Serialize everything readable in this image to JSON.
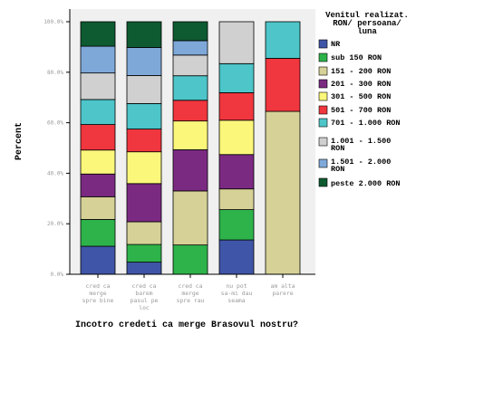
{
  "chart_data": {
    "type": "bar",
    "stacked": true,
    "categories": [
      [
        "cred ca",
        "merge",
        "spre bine"
      ],
      [
        "cred ca",
        "barem",
        "pasul pe",
        "loc"
      ],
      [
        "cred ca",
        "merge",
        "spre rau"
      ],
      [
        "nu pot",
        "sa-mi dau",
        "seama"
      ],
      [
        "am alta",
        "parere"
      ]
    ],
    "xlabel": "Incotro credeti ca merge Brasovul nostru?",
    "ylabel": "Percent",
    "ylim": [
      0,
      100
    ],
    "yticks": [
      "0.0%",
      "20.0%",
      "40.0%",
      "60.0%",
      "80.0%",
      "100.0%"
    ],
    "legend": {
      "title": [
        "Venitul realizat.",
        "RON/ persoana/",
        "luna"
      ],
      "position": "right"
    },
    "series": [
      {
        "name": [
          "NR"
        ],
        "color": "#3f55a7",
        "values": [
          11.1,
          4.8,
          0,
          13.6,
          0
        ]
      },
      {
        "name": [
          "sub 150 RON"
        ],
        "color": "#2db34a",
        "values": [
          10.6,
          7.0,
          11.6,
          12.0,
          0
        ]
      },
      {
        "name": [
          "151 - 200 RON"
        ],
        "color": "#d6d196",
        "values": [
          9.0,
          9.0,
          21.4,
          8.2,
          64.5
        ]
      },
      {
        "name": [
          "201 - 300 RON"
        ],
        "color": "#7b2a82",
        "values": [
          9.0,
          15.1,
          16.3,
          13.6,
          0
        ]
      },
      {
        "name": [
          "301 - 500 RON"
        ],
        "color": "#fbf77b",
        "values": [
          9.5,
          12.6,
          11.4,
          13.6,
          0
        ]
      },
      {
        "name": [
          "501 - 700 RON"
        ],
        "color": "#f0363e",
        "values": [
          10.1,
          9.0,
          8.2,
          10.9,
          21.0
        ]
      },
      {
        "name": [
          "701 - 1.000 RON"
        ],
        "color": "#4dc5c9",
        "values": [
          9.9,
          10.1,
          9.7,
          11.5,
          14.5
        ]
      },
      {
        "name": [
          "1.001 - 1.500",
          "RON"
        ],
        "color": "#d0d0d0",
        "values": [
          10.5,
          11.1,
          8.2,
          16.6,
          0
        ]
      },
      {
        "name": [
          "1.501 - 2.000",
          "RON"
        ],
        "color": "#7ea8d8",
        "values": [
          10.6,
          11.1,
          5.7,
          0,
          0
        ]
      },
      {
        "name": [
          "peste 2.000 RON"
        ],
        "color": "#0e5a31",
        "values": [
          9.7,
          10.2,
          7.5,
          0,
          0
        ]
      }
    ],
    "grid": false,
    "plot_background": "#f0f0f0"
  }
}
